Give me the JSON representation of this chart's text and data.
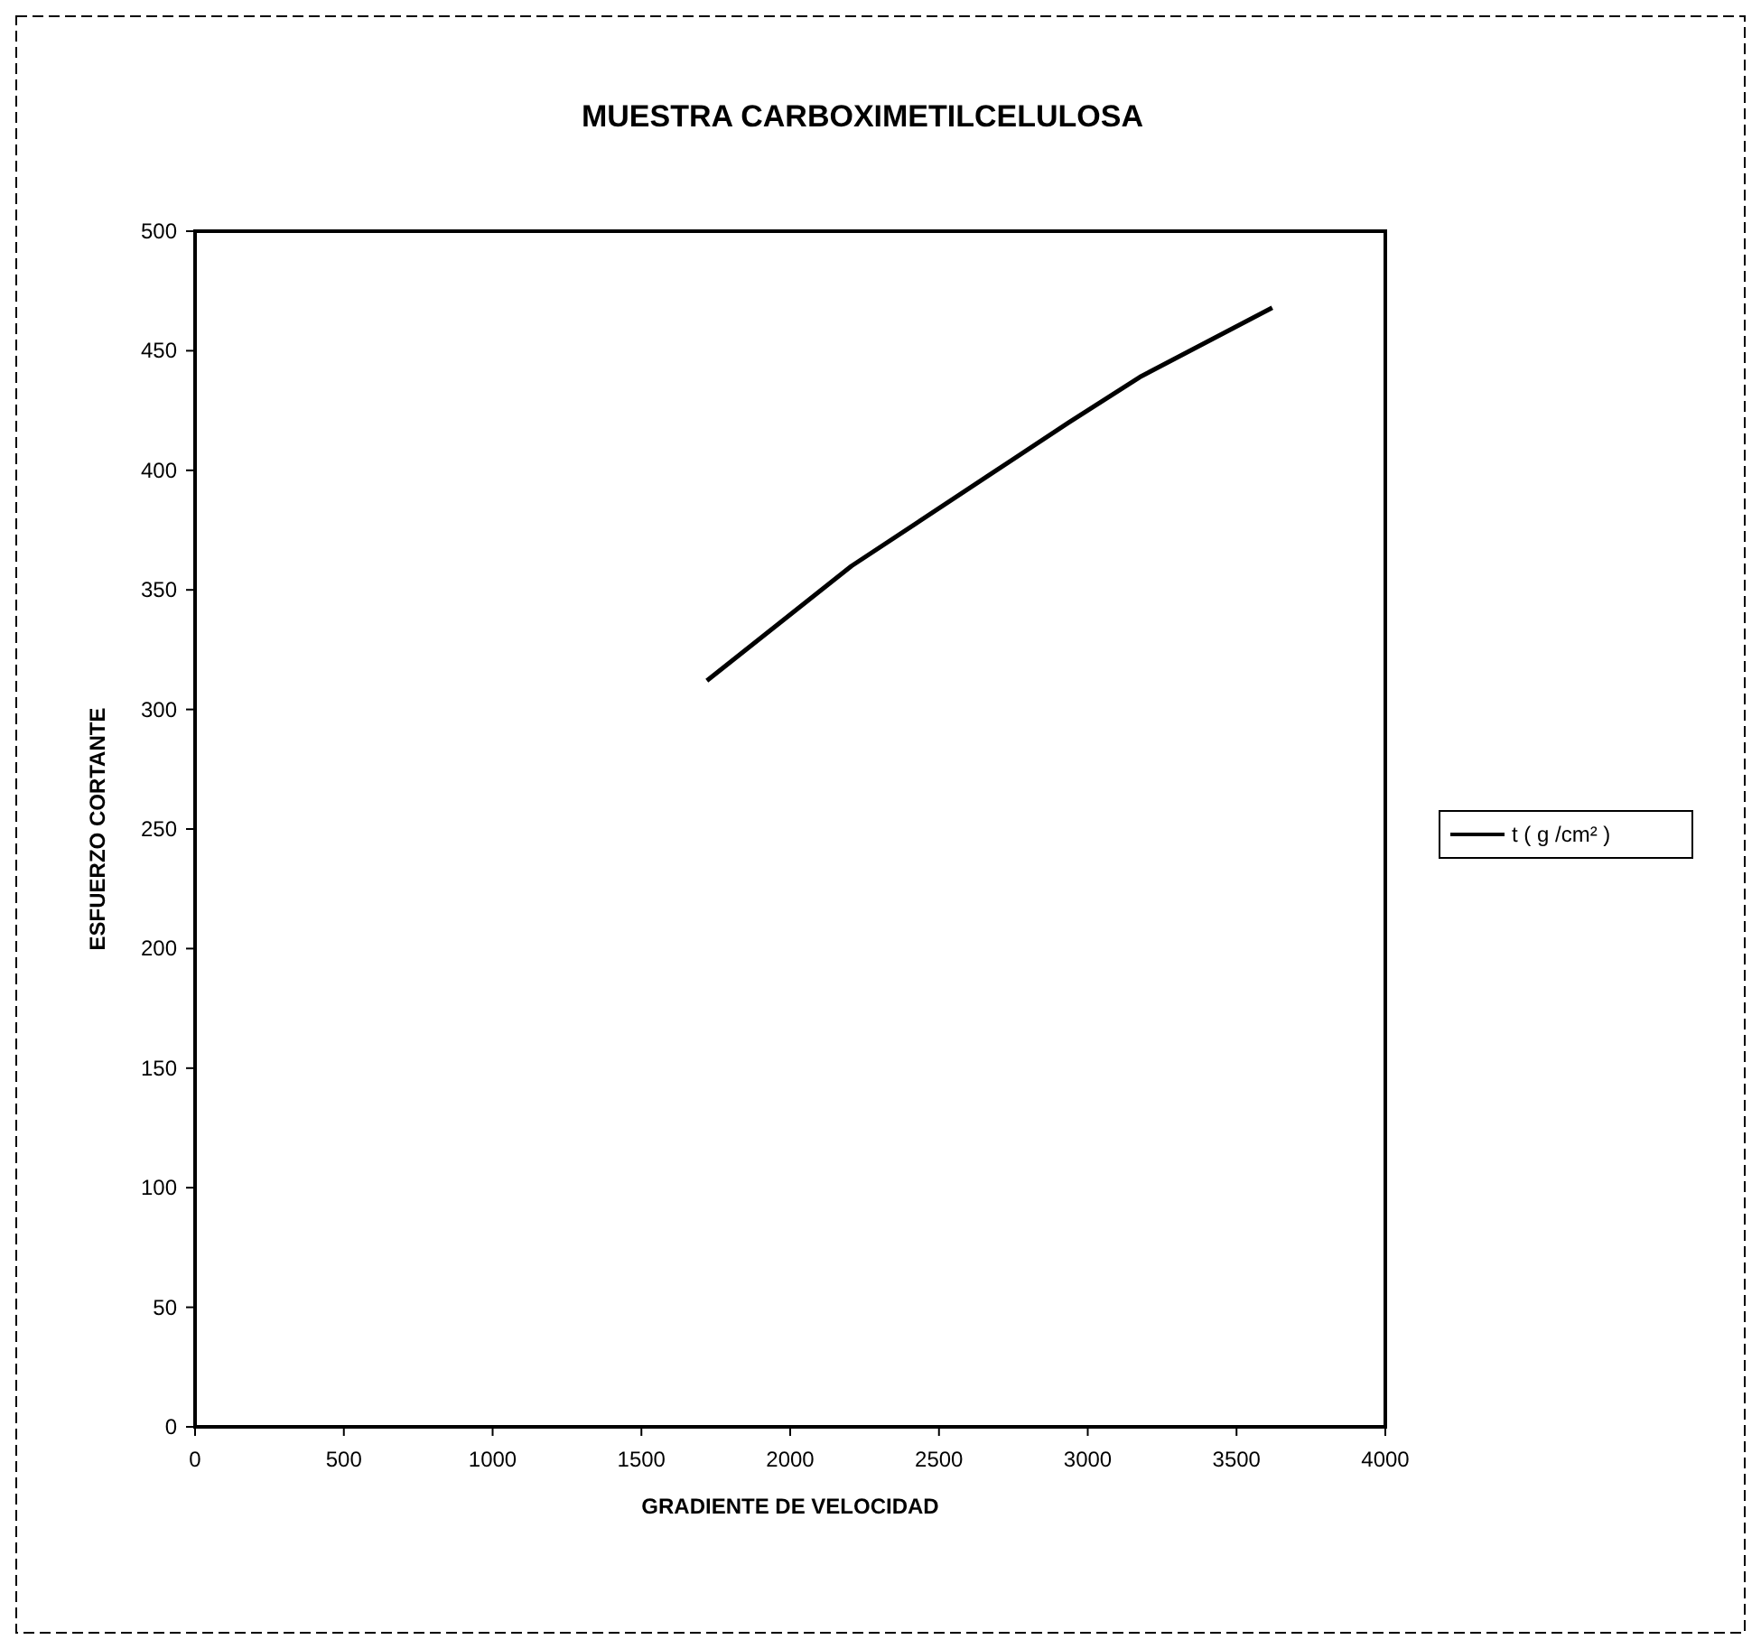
{
  "chart_data": {
    "type": "line",
    "title": "MUESTRA CARBOXIMETILCELULOSA",
    "xlabel": "GRADIENTE DE VELOCIDAD",
    "ylabel": "ESFUERZO CORTANTE",
    "x": [
      1720,
      2206,
      2681,
      2936,
      3175,
      3620
    ],
    "series": [
      {
        "name": "t ( g /cm² )",
        "color": "#000000",
        "values": [
          312,
          360,
          399,
          420,
          439,
          468
        ]
      }
    ],
    "xlim": [
      0,
      4000
    ],
    "xticks": [
      0,
      500,
      1000,
      1500,
      2000,
      2500,
      3000,
      3500,
      4000
    ],
    "ylim": [
      0,
      500
    ],
    "yticks": [
      0,
      50,
      100,
      150,
      200,
      250,
      300,
      350,
      400,
      450,
      500
    ],
    "grid": false,
    "legend": "right",
    "marker": "none",
    "line_style": "solid"
  }
}
